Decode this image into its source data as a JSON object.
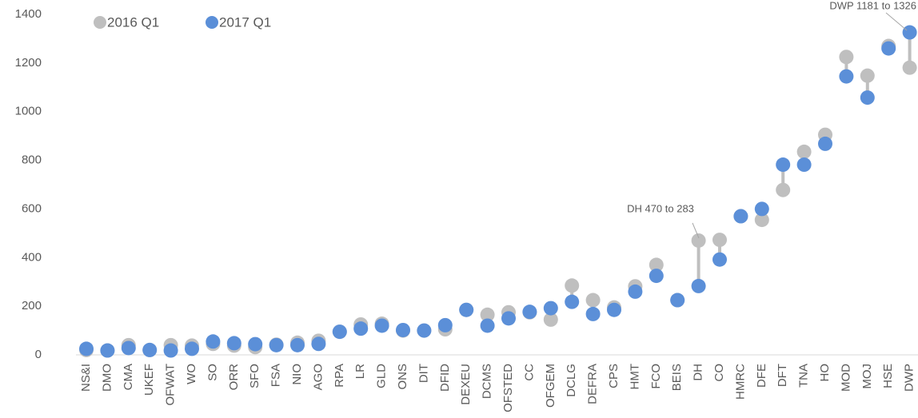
{
  "chart_data": {
    "type": "dumbbell",
    "categories": [
      "NS&I",
      "DMO",
      "CMA",
      "UKEF",
      "OFWAT",
      "WO",
      "SO",
      "ORR",
      "SFO",
      "FSA",
      "NIO",
      "AGO",
      "RPA",
      "LR",
      "GLD",
      "ONS",
      "DIT",
      "DFID",
      "DEXEU",
      "DCMS",
      "OFSTED",
      "CC",
      "OFGEM",
      "DCLG",
      "DEFRA",
      "CPS",
      "HMT",
      "FCO",
      "BEIS",
      "DH",
      "CO",
      "HMRC",
      "DFE",
      "DFT",
      "TNA",
      "HO",
      "MOD",
      "MOJ",
      "HSE",
      "DWP"
    ],
    "series": [
      {
        "name": "2016 Q1",
        "color": "#bfbfbf",
        "values": [
          20,
          18,
          40,
          20,
          40,
          38,
          45,
          38,
          32,
          42,
          50,
          58,
          95,
          125,
          128,
          100,
          100,
          105,
          185,
          165,
          175,
          175,
          145,
          285,
          225,
          195,
          282,
          370,
          225,
          470,
          473,
          570,
          555,
          678,
          835,
          905,
          1225,
          1148,
          1270,
          1181
        ]
      },
      {
        "name": "2017 Q1",
        "color": "#5b8fd8",
        "values": [
          25,
          18,
          28,
          20,
          18,
          25,
          55,
          48,
          44,
          40,
          40,
          45,
          95,
          108,
          120,
          102,
          100,
          122,
          185,
          120,
          150,
          177,
          192,
          218,
          168,
          185,
          260,
          325,
          225,
          283,
          392,
          570,
          600,
          782,
          782,
          868,
          1145,
          1058,
          1260,
          1326
        ]
      }
    ],
    "ylim": [
      0,
      1400
    ],
    "yticks": [
      0,
      200,
      400,
      600,
      800,
      1000,
      1200,
      1400
    ],
    "annotations": [
      "DWP 1181 to 1326",
      "DH 470 to 283"
    ],
    "grid": false,
    "legend": "top-left"
  }
}
